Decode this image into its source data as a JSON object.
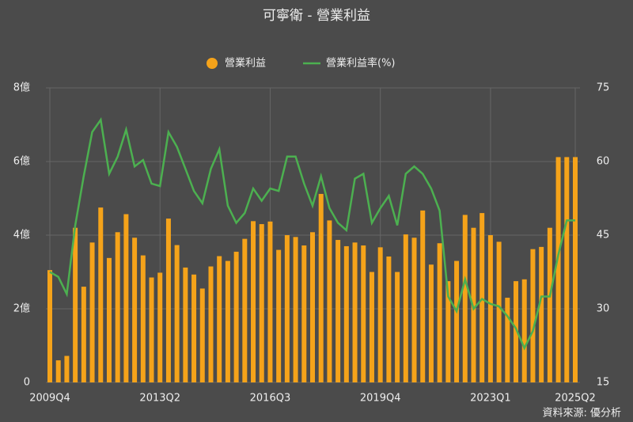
{
  "chart_data": {
    "type": "bar-line",
    "title": "可寧衛 - 營業利益",
    "source": "資料來源: 優分析",
    "categories": [
      "2009Q4",
      null,
      null,
      null,
      null,
      null,
      null,
      null,
      null,
      null,
      null,
      null,
      null,
      "2013Q2",
      null,
      null,
      null,
      null,
      null,
      null,
      null,
      null,
      null,
      null,
      null,
      null,
      "2016Q3",
      null,
      null,
      null,
      null,
      null,
      null,
      null,
      null,
      null,
      null,
      null,
      null,
      "2019Q4",
      null,
      null,
      null,
      null,
      null,
      null,
      null,
      null,
      null,
      null,
      null,
      null,
      "2023Q1",
      null,
      null,
      null,
      null,
      null,
      null,
      null,
      null,
      null,
      "2025Q2"
    ],
    "series": [
      {
        "name": "營業利益",
        "color": "#f5a31a",
        "axis": "y",
        "values": [
          3.05,
          0.6,
          0.72,
          4.2,
          2.6,
          3.8,
          4.75,
          3.38,
          4.08,
          4.57,
          3.93,
          3.45,
          2.85,
          2.98,
          4.45,
          3.73,
          3.12,
          2.93,
          2.55,
          3.15,
          3.43,
          3.3,
          3.55,
          3.9,
          4.38,
          4.3,
          4.37,
          3.6,
          4.0,
          3.95,
          3.72,
          4.08,
          5.12,
          4.4,
          3.87,
          3.7,
          3.8,
          3.72,
          3.0,
          3.67,
          3.42,
          3.0,
          4.02,
          3.93,
          4.67,
          3.2,
          3.78,
          2.75,
          3.3,
          4.55,
          4.2,
          4.6,
          4.0,
          3.82,
          2.3,
          2.75,
          2.8,
          3.62,
          3.68,
          4.2,
          6.12,
          6.12,
          6.12
        ]
      },
      {
        "name": "營業利益率(%)",
        "color": "#4cb050",
        "axis": "y2",
        "values": [
          37.5,
          36.5,
          33,
          47,
          57,
          66,
          68.5,
          57.5,
          61,
          66.5,
          59,
          60.3,
          55.5,
          55,
          66,
          63,
          58.5,
          54,
          51.5,
          58.5,
          62.5,
          51,
          47.5,
          49.5,
          54.5,
          52,
          54.5,
          54,
          61,
          61,
          55.5,
          51,
          57,
          50.5,
          47.5,
          46,
          56.5,
          57.5,
          47.5,
          50.5,
          53,
          47,
          57.5,
          59,
          57.5,
          54.5,
          50,
          32.5,
          29.5,
          36,
          30,
          32,
          31,
          30.5,
          28.5,
          26,
          22,
          25.5,
          32.5,
          32.5,
          41,
          48,
          48
        ]
      }
    ],
    "ylim": [
      0,
      8
    ],
    "yticks": [
      0,
      {
        "value": 2,
        "label": "2億"
      },
      {
        "value": 4,
        "label": "4億"
      },
      {
        "value": 6,
        "label": "6億"
      },
      {
        "value": 8,
        "label": "8億"
      }
    ],
    "y2lim": [
      15,
      75
    ],
    "y2ticks": [
      15,
      30,
      45,
      60,
      75
    ],
    "grid": true
  }
}
